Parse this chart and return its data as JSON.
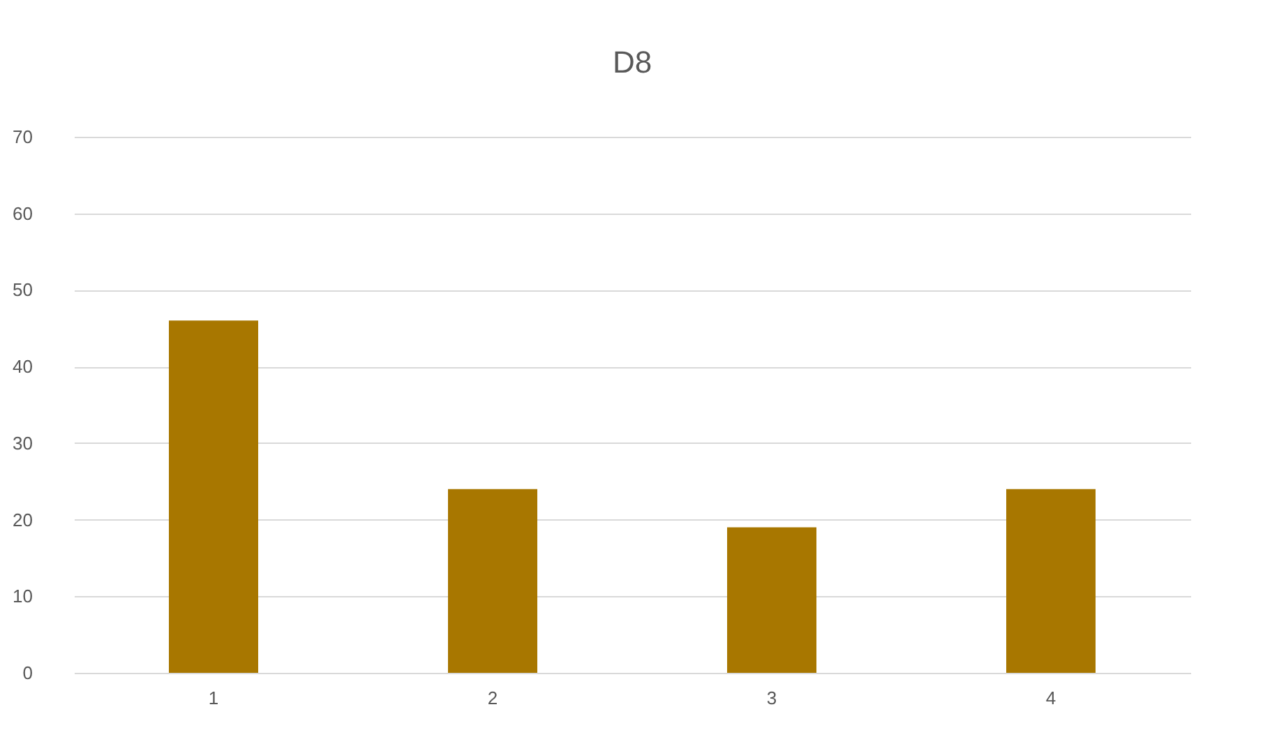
{
  "chart_data": {
    "type": "bar",
    "title": "D8",
    "categories": [
      "1",
      "2",
      "3",
      "4"
    ],
    "values": [
      46,
      24,
      19,
      24
    ],
    "color": "#a87700",
    "ylim": [
      0,
      70
    ],
    "yticks": [
      0,
      10,
      20,
      30,
      40,
      50,
      60,
      70
    ],
    "grid": "y"
  }
}
